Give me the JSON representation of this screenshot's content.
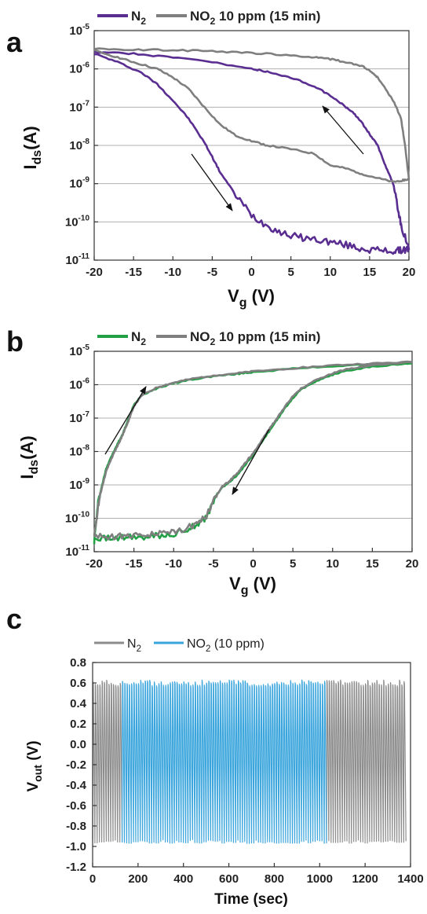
{
  "panels": {
    "a": {
      "letter": "a"
    },
    "b": {
      "letter": "b"
    },
    "c": {
      "letter": "c"
    }
  },
  "chart_data": [
    {
      "type": "line",
      "panel": "a",
      "xlabel": "Vg (V)",
      "ylabel": "Ids(A)",
      "xlim": [
        -20,
        20
      ],
      "ylim_log10": [
        -11,
        -5
      ],
      "yscale": "log",
      "xticks": [
        "-20",
        "-15",
        "-10",
        "-5",
        "0",
        "5",
        "10",
        "15",
        "20"
      ],
      "yticks": [
        "10-5",
        "10-6",
        "10-7",
        "10-8",
        "10-9",
        "10-10",
        "10-11"
      ],
      "grid": true,
      "legend_position": "top",
      "annotations": [
        "forward-sweep-arrow",
        "reverse-sweep-arrow"
      ],
      "series": [
        {
          "name": "N2",
          "color": "#5a2d91",
          "branches": [
            {
              "x": [
                -20,
                -17,
                -14,
                -12,
                -10,
                -8,
                -6,
                -5,
                -4,
                -2,
                0,
                2,
                4,
                6,
                8,
                10,
                12,
                14,
                16,
                18,
                19,
                20
              ],
              "y": [
                2.5e-06,
                1.5e-06,
                8e-07,
                4e-07,
                1.5e-07,
                5e-08,
                1.2e-08,
                5e-09,
                2e-09,
                5e-10,
                1.5e-10,
                8e-11,
                5e-11,
                4e-11,
                3.5e-11,
                3e-11,
                2.5e-11,
                2e-11,
                1.8e-11,
                1.7e-11,
                1.8e-11,
                2e-11
              ]
            },
            {
              "x": [
                20,
                19,
                18.5,
                18,
                17,
                16,
                15,
                14,
                13,
                12,
                10,
                8,
                5,
                2,
                0,
                -5,
                -10,
                -15,
                -20
              ],
              "y": [
                2e-11,
                8e-11,
                3e-10,
                1e-09,
                3e-09,
                1e-08,
                2e-08,
                4e-08,
                7e-08,
                1e-07,
                2e-07,
                3.5e-07,
                6e-07,
                8.5e-07,
                1e-06,
                1.5e-06,
                2e-06,
                2.5e-06,
                2.8e-06
              ]
            }
          ]
        },
        {
          "name": "NO2 10 ppm (15 min)",
          "color": "#7f7f7f",
          "branches": [
            {
              "x": [
                -20,
                -17,
                -15,
                -12,
                -10,
                -8,
                -6,
                -4,
                -2,
                0,
                2,
                5,
                8,
                10,
                12,
                14,
                16,
                18,
                19,
                20
              ],
              "y": [
                3e-06,
                2e-06,
                1.5e-06,
                1e-06,
                6e-07,
                3e-07,
                1e-07,
                3.5e-08,
                1.8e-08,
                1.3e-08,
                1e-08,
                8e-09,
                6e-09,
                3e-09,
                2.5e-09,
                1.8e-09,
                1.4e-09,
                1.1e-09,
                1.2e-09,
                1.3e-09
              ]
            },
            {
              "x": [
                20,
                19.5,
                19,
                18,
                17,
                16,
                15,
                14,
                12,
                10,
                8,
                5,
                0,
                -5,
                -10,
                -15,
                -20
              ],
              "y": [
                1.3e-09,
                1e-08,
                5e-08,
                1.5e-07,
                3e-07,
                6e-07,
                9e-07,
                1.2e-06,
                1.5e-06,
                1.8e-06,
                2e-06,
                2.3e-06,
                2.6e-06,
                2.9e-06,
                3.1e-06,
                3.2e-06,
                3.3e-06
              ]
            }
          ]
        }
      ]
    },
    {
      "type": "line",
      "panel": "b",
      "xlabel": "Vg (V)",
      "ylabel": "Ids(A)",
      "xlim": [
        -20,
        20
      ],
      "ylim_log10": [
        -11,
        -5
      ],
      "yscale": "log",
      "xticks": [
        "-20",
        "-15",
        "-10",
        "-5",
        "0",
        "5",
        "10",
        "15",
        "20"
      ],
      "yticks": [
        "10-5",
        "10-6",
        "10-7",
        "10-8",
        "10-9",
        "10-10",
        "10-11"
      ],
      "grid": true,
      "legend_position": "top",
      "annotations": [
        "forward-sweep-arrow",
        "reverse-sweep-arrow"
      ],
      "series": [
        {
          "name": "N2",
          "color": "#22a045",
          "branches": [
            {
              "x": [
                -20,
                -19.5,
                -19,
                -18.5,
                -18,
                -17.5,
                -17,
                -16.5,
                -16,
                -15.5,
                -15,
                -14,
                -12,
                -10,
                -8,
                -5,
                -2,
                0,
                5,
                10,
                15,
                20
              ],
              "y": [
                2e-11,
                3e-10,
                1e-09,
                3e-09,
                6e-09,
                1e-08,
                1.8e-08,
                3e-08,
                6e-08,
                1.2e-07,
                2.5e-07,
                5e-07,
                8e-07,
                1.1e-06,
                1.4e-06,
                1.8e-06,
                2.1e-06,
                2.4e-06,
                3e-06,
                3.6e-06,
                4e-06,
                4.4e-06
              ]
            },
            {
              "x": [
                20,
                15,
                12,
                10,
                8,
                6,
                5,
                4,
                3,
                2,
                1,
                0,
                -1,
                -2,
                -3,
                -4,
                -5,
                -6,
                -7,
                -8,
                -10,
                -12,
                -14,
                -16,
                -18,
                -20
              ],
              "y": [
                4.4e-06,
                3.5e-06,
                2.7e-06,
                2e-06,
                1.3e-06,
                7e-07,
                4e-07,
                2e-07,
                9e-08,
                4e-08,
                1.8e-08,
                8e-09,
                4e-09,
                2e-09,
                1.2e-09,
                8e-10,
                3e-10,
                1e-10,
                7e-11,
                5e-11,
                3.5e-11,
                3e-11,
                2.8e-11,
                2.8e-11,
                2.5e-11,
                2.5e-11
              ]
            }
          ]
        },
        {
          "name": "NO2 10 ppm (15 min)",
          "color": "#7f7f7f",
          "branches": [
            {
              "x": [
                -20,
                -19.5,
                -19,
                -18.5,
                -18,
                -17.5,
                -17,
                -16.5,
                -16,
                -15.5,
                -15,
                -14,
                -12,
                -10,
                -8,
                -5,
                -2,
                0,
                5,
                10,
                15,
                20
              ],
              "y": [
                2.5e-11,
                2.5e-10,
                9e-10,
                2.5e-09,
                5e-09,
                9e-09,
                1.6e-08,
                2.8e-08,
                5.5e-08,
                1.1e-07,
                2.3e-07,
                4.8e-07,
                8.5e-07,
                1.15e-06,
                1.45e-06,
                1.9e-06,
                2.2e-06,
                2.5e-06,
                3.1e-06,
                3.8e-06,
                4.3e-06,
                4.8e-06
              ]
            },
            {
              "x": [
                20,
                15,
                12,
                10,
                8,
                6,
                5,
                4,
                3,
                2,
                1,
                0,
                -1,
                -2,
                -3,
                -4,
                -5,
                -6,
                -7,
                -8,
                -10,
                -12,
                -14,
                -16,
                -18,
                -20
              ],
              "y": [
                4.8e-06,
                3.8e-06,
                3e-06,
                2.2e-06,
                1.4e-06,
                7.5e-07,
                4.5e-07,
                2.2e-07,
                1e-07,
                4.5e-08,
                2e-08,
                9e-09,
                4.5e-09,
                2.2e-09,
                1.3e-09,
                8.5e-10,
                3.2e-10,
                1.1e-10,
                7e-11,
                5.5e-11,
                4e-11,
                3.5e-11,
                3e-11,
                3e-11,
                2.8e-11,
                2.8e-11
              ]
            }
          ]
        }
      ]
    },
    {
      "type": "line",
      "panel": "c",
      "xlabel": "Time (sec)",
      "ylabel": "Vout (V)",
      "xlim": [
        0,
        1400
      ],
      "ylim": [
        -1.2,
        0.8
      ],
      "xticks": [
        "0",
        "200",
        "400",
        "600",
        "800",
        "1000",
        "1200",
        "1400"
      ],
      "yticks": [
        "0.8",
        "0.6",
        "0.4",
        "0.2",
        "0.0",
        "-0.2",
        "-0.4",
        "-0.6",
        "-0.8",
        "-1.0",
        "-1.2"
      ],
      "grid": false,
      "legend_position": "top",
      "series": [
        {
          "name": "N2",
          "color": "#8c8c8c",
          "segments": [
            [
              0,
              130
            ],
            [
              1030,
              1380
            ]
          ],
          "high": 0.6,
          "low": -0.95,
          "period_sec": 10
        },
        {
          "name": "NO2 (10 ppm)",
          "color": "#3aa5dc",
          "segments": [
            [
              130,
              1030
            ]
          ],
          "high": 0.6,
          "low": -0.95,
          "period_sec": 10
        }
      ]
    }
  ],
  "colors": {
    "axis": "#333333",
    "grid": "#b0b0b0",
    "n2_a": "#5a2d91",
    "gray": "#7f7f7f",
    "n2_b": "#22a045",
    "no2_c": "#3aa5dc"
  }
}
